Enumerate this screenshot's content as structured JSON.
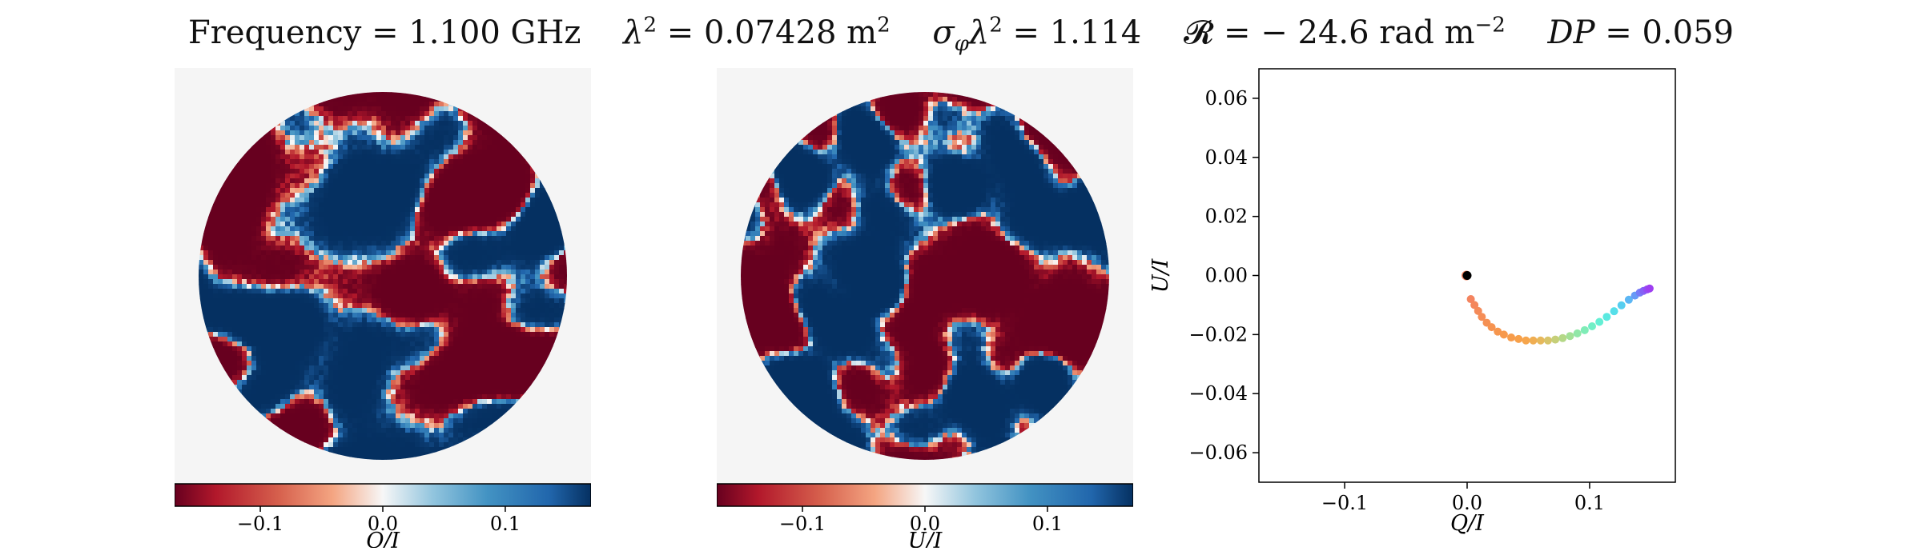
{
  "title_parts": {
    "frequency": "Frequency = 1.100 GHz",
    "lambda_lhs": "λ",
    "lambda_rhs": " = 0.07428 m",
    "sigma_lhs": "σ",
    "sigma_sub": "φ",
    "sigma_mid": "λ",
    "sigma_rhs": " = 1.114",
    "r_lhs": "𝓡",
    "r_rhs": " =  − 24.6 rad m",
    "r_exp": "−2",
    "dp_lhs": "DP",
    "dp_rhs": " = 0.059",
    "sq": "2"
  },
  "colors": {
    "diverging_low": "#67001f",
    "diverging_mid": "#f7f7f7",
    "diverging_high": "#053061",
    "map_background": "#f5f5f5"
  },
  "chart_data": [
    {
      "type": "heatmap",
      "description_label": "Q/I",
      "colorbar": {
        "label": "Q/I",
        "ticks": [
          "−0.1",
          "0.0",
          "0.1"
        ],
        "tick_values": [
          -0.1,
          0.0,
          0.1
        ],
        "range": [
          -0.17,
          0.17
        ],
        "colormap": "RdBu"
      },
      "seed": 17
    },
    {
      "type": "heatmap",
      "description_label": "U/I",
      "colorbar": {
        "label": "U/I",
        "ticks": [
          "−0.1",
          "0.0",
          "0.1"
        ],
        "tick_values": [
          -0.1,
          0.0,
          0.1
        ],
        "range": [
          -0.17,
          0.17
        ],
        "colormap": "RdBu"
      },
      "seed": 42
    },
    {
      "type": "scatter",
      "xlabel": "Q/I",
      "ylabel": "U/I",
      "xlim": [
        -0.17,
        0.17
      ],
      "ylim": [
        -0.07,
        0.07
      ],
      "xticks": [
        -0.1,
        0.0,
        0.1
      ],
      "xtick_labels": [
        "−0.1",
        "0.0",
        "0.1"
      ],
      "yticks": [
        -0.06,
        -0.04,
        -0.02,
        0.0,
        0.02,
        0.04,
        0.06
      ],
      "ytick_labels": [
        "−0.06",
        "−0.04",
        "−0.02",
        "0.00",
        "0.02",
        "0.04",
        "0.06"
      ],
      "origin_point": {
        "x": 0.0,
        "y": 0.0,
        "color": "#000000"
      },
      "points": [
        {
          "x": 0.003,
          "y": -0.008,
          "color": "#f4845f"
        },
        {
          "x": 0.006,
          "y": -0.01,
          "color": "#f4875c"
        },
        {
          "x": 0.009,
          "y": -0.012,
          "color": "#f48a59"
        },
        {
          "x": 0.012,
          "y": -0.014,
          "color": "#f58d56"
        },
        {
          "x": 0.016,
          "y": -0.016,
          "color": "#f59053"
        },
        {
          "x": 0.02,
          "y": -0.0175,
          "color": "#f69350"
        },
        {
          "x": 0.025,
          "y": -0.019,
          "color": "#f6964e"
        },
        {
          "x": 0.03,
          "y": -0.02,
          "color": "#f7994c"
        },
        {
          "x": 0.036,
          "y": -0.021,
          "color": "#f79c4b"
        },
        {
          "x": 0.042,
          "y": -0.0215,
          "color": "#f7a04a"
        },
        {
          "x": 0.048,
          "y": -0.022,
          "color": "#f6a54c"
        },
        {
          "x": 0.054,
          "y": -0.022,
          "color": "#f0ae52"
        },
        {
          "x": 0.06,
          "y": -0.022,
          "color": "#e6b85c"
        },
        {
          "x": 0.066,
          "y": -0.022,
          "color": "#d7c46a"
        },
        {
          "x": 0.072,
          "y": -0.0217,
          "color": "#c6cf78"
        },
        {
          "x": 0.078,
          "y": -0.0212,
          "color": "#b4d887"
        },
        {
          "x": 0.084,
          "y": -0.0205,
          "color": "#a2e097"
        },
        {
          "x": 0.09,
          "y": -0.0196,
          "color": "#90e7a7"
        },
        {
          "x": 0.096,
          "y": -0.0185,
          "color": "#7fecb7"
        },
        {
          "x": 0.102,
          "y": -0.0172,
          "color": "#70efc6"
        },
        {
          "x": 0.108,
          "y": -0.0157,
          "color": "#64efd4"
        },
        {
          "x": 0.114,
          "y": -0.014,
          "color": "#5ae9e0"
        },
        {
          "x": 0.12,
          "y": -0.0121,
          "color": "#55dfe9"
        },
        {
          "x": 0.126,
          "y": -0.0101,
          "color": "#56cef0"
        },
        {
          "x": 0.132,
          "y": -0.0082,
          "color": "#5cb6f4"
        },
        {
          "x": 0.137,
          "y": -0.0068,
          "color": "#679af6"
        },
        {
          "x": 0.141,
          "y": -0.0058,
          "color": "#767cf6"
        },
        {
          "x": 0.144,
          "y": -0.0052,
          "color": "#8561f5"
        },
        {
          "x": 0.147,
          "y": -0.0047,
          "color": "#934cf3"
        },
        {
          "x": 0.149,
          "y": -0.0044,
          "color": "#9e3ff1"
        }
      ]
    }
  ]
}
